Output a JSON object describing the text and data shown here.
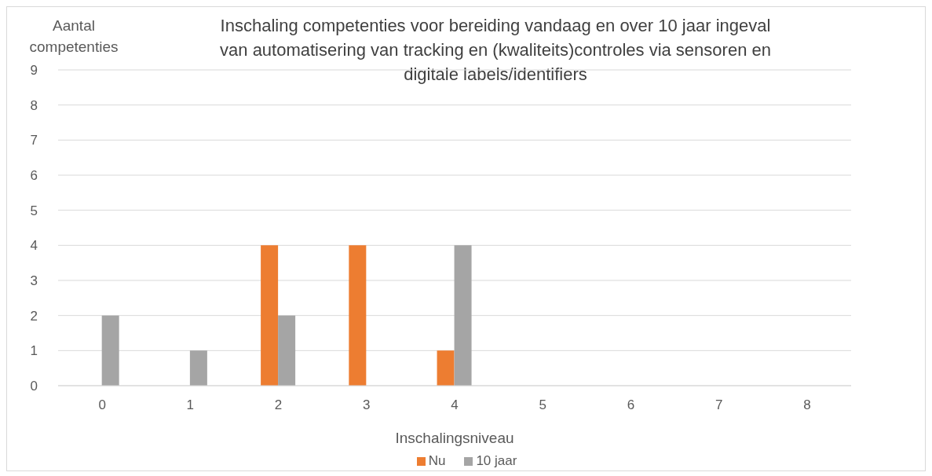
{
  "chart_data": {
    "type": "bar",
    "title": "Inschaling competenties voor bereiding vandaag en over 10 jaar ingeval van automatisering van tracking en (kwaliteits)controles via sensoren en digitale labels/identifiers",
    "xlabel": "Inschalingsniveau",
    "ylabel": "Aantal competenties",
    "categories": [
      "0",
      "1",
      "2",
      "3",
      "4",
      "5",
      "6",
      "7",
      "8"
    ],
    "series": [
      {
        "name": "Nu",
        "color": "#ed7d31",
        "values": [
          0,
          0,
          4,
          4,
          1,
          0,
          0,
          0,
          0
        ]
      },
      {
        "name": "10 jaar",
        "color": "#a5a5a5",
        "values": [
          2,
          1,
          2,
          0,
          4,
          0,
          0,
          0,
          0
        ]
      }
    ],
    "ylim": [
      0,
      9
    ],
    "yticks": [
      0,
      1,
      2,
      3,
      4,
      5,
      6,
      7,
      8,
      9
    ],
    "grid": "y",
    "legend": "bottom"
  }
}
